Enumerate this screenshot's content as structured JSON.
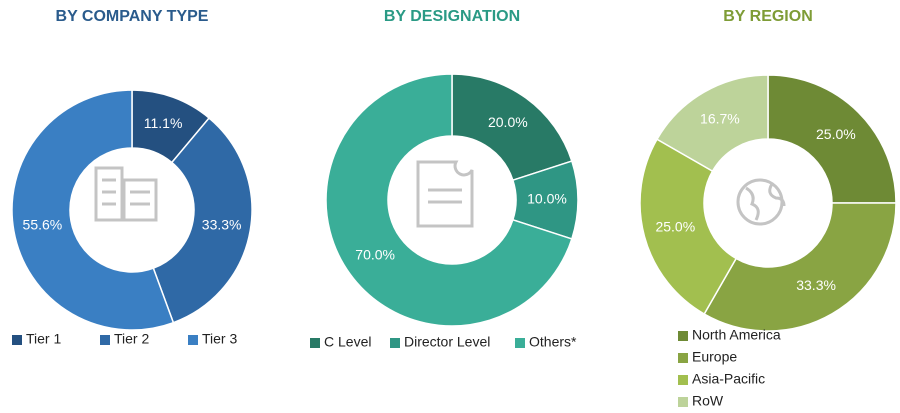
{
  "chart_data": [
    {
      "type": "pie",
      "title": "BY COMPANY TYPE",
      "categories": [
        "Tier 1",
        "Tier 2",
        "Tier 3"
      ],
      "values": [
        11.1,
        33.3,
        55.6
      ],
      "value_labels": [
        "11.1%",
        "33.3%",
        "55.6%"
      ],
      "colors": [
        "#245080",
        "#2f69a6",
        "#3a7fc3"
      ],
      "title_color": "#2a5b8c"
    },
    {
      "type": "pie",
      "title": "BY DESIGNATION",
      "categories": [
        "C Level",
        "Director Level",
        "Others*"
      ],
      "values": [
        20.0,
        10.0,
        70.0
      ],
      "value_labels": [
        "20.0%",
        "10.0%",
        "70.0%"
      ],
      "colors": [
        "#287a66",
        "#2f9684",
        "#3aae98"
      ],
      "title_color": "#2a9a85"
    },
    {
      "type": "pie",
      "title": "BY REGION",
      "categories": [
        "North America",
        "Europe",
        "Asia-Pacific",
        "RoW"
      ],
      "values": [
        25.0,
        33.3,
        25.0,
        16.7
      ],
      "value_labels": [
        "25.0%",
        "33.3%",
        "25.0%",
        "16.7%"
      ],
      "colors": [
        "#6e8a35",
        "#89a443",
        "#a2bf4f",
        "#bdd39a"
      ],
      "title_color": "#7e9c36"
    }
  ]
}
